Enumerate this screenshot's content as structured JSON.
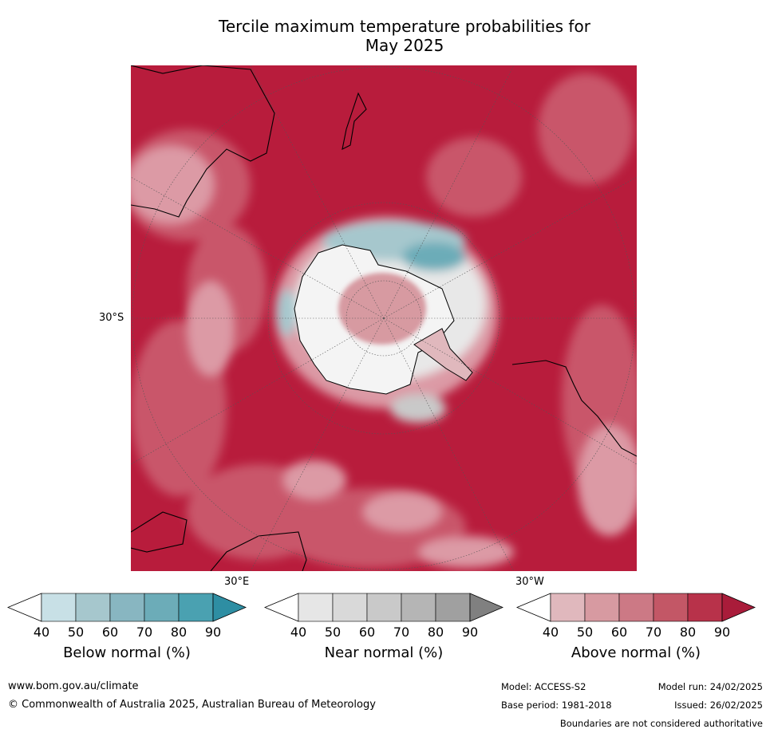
{
  "title_line1": "Tercile maximum temperature probabilities for",
  "title_line2": "May 2025",
  "graticule_labels": {
    "lat": "30°S",
    "lon_east": "30°E",
    "lon_west": "30°W"
  },
  "colorbars": [
    {
      "label": "Below normal (%)",
      "ticks": [
        "40",
        "50",
        "60",
        "70",
        "80",
        "90"
      ],
      "colors": [
        "#ffffff",
        "#c8e0e6",
        "#a6c7cd",
        "#88b6c1",
        "#6cacb8",
        "#4aa1b1",
        "#2e8ea3"
      ]
    },
    {
      "label": "Near normal (%)",
      "ticks": [
        "40",
        "50",
        "60",
        "70",
        "80",
        "90"
      ],
      "colors": [
        "#ffffff",
        "#e6e6e6",
        "#d9d9d9",
        "#c9c9c9",
        "#b5b5b5",
        "#a0a0a0",
        "#808080"
      ]
    },
    {
      "label": "Above normal (%)",
      "ticks": [
        "40",
        "50",
        "60",
        "70",
        "80",
        "90"
      ],
      "colors": [
        "#ffffff",
        "#e0b8bd",
        "#d79aa1",
        "#cc7985",
        "#c35766",
        "#b8324a",
        "#a91c3a"
      ]
    }
  ],
  "footer": {
    "website": "www.bom.gov.au/climate",
    "copyright": "© Commonwealth of Australia 2025, Australian Bureau of Meteorology",
    "model": "Model: ACCESS-S2",
    "model_run": "Model run: 24/02/2025",
    "base_period": "Base period: 1981-2018",
    "issued": "Issued: 26/02/2025",
    "disclaimer": "Boundaries are not considered authoritative"
  },
  "map_colors": {
    "ocean_high": "#b81c3c",
    "mid": "#c9566b",
    "low": "#dc9aa5",
    "near": "#e8e8e8",
    "below": "#7fb9c4",
    "below_dark": "#45a0b0"
  }
}
